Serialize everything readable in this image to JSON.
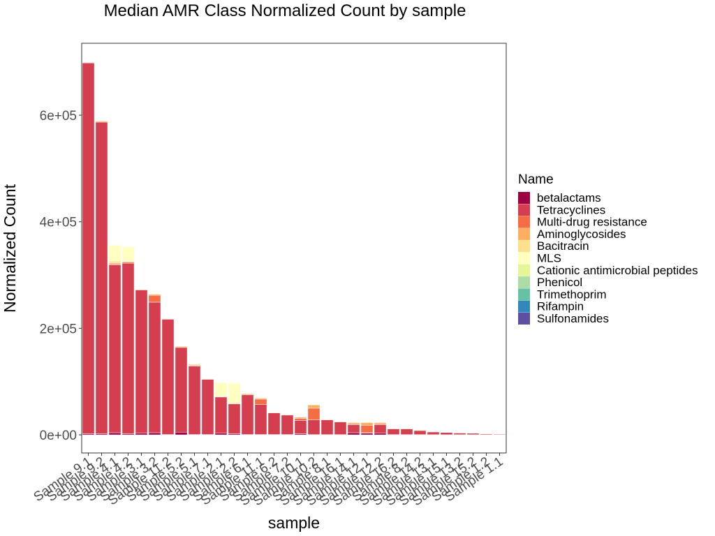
{
  "chart_data": {
    "type": "bar",
    "stacked": true,
    "title": "Median AMR Class Normalized Count by sample",
    "xlabel": "sample",
    "ylabel": "Normalized Count",
    "ylim": [
      -34000,
      735000
    ],
    "yticks": [
      0,
      200000,
      400000,
      600000
    ],
    "ytick_labels": [
      "0e+00",
      "2e+05",
      "4e+05",
      "6e+05"
    ],
    "grid": false,
    "legend": {
      "title": "Name",
      "position": "right"
    },
    "categories": [
      "Sample 9.1",
      "Sample 9.2",
      "Sample 4.1",
      "Sample 4.2",
      "Sample 3.1",
      "Sample 3.2",
      "Sample 11.2",
      "Sample 5.2",
      "Sample 5.1",
      "Sample 7.1",
      "Sample 2.1",
      "Sample 2.2",
      "Sample 6.1",
      "Sample 11.1",
      "Sample 6.2",
      "Sample 7.2",
      "Sample 10.1",
      "Sample 10.2",
      "Sample 8.1",
      "Sample 16.1",
      "Sample 14.1",
      "Sample 12.1",
      "Sample 12.2",
      "Sample 16.2",
      "Sample 8.2",
      "Sample 14.2",
      "Sample 13.1",
      "Sample 15.1",
      "Sample 13.2",
      "Sample 15.2",
      "Sample 1.2",
      "Sample 1.1"
    ],
    "series": [
      {
        "name": "betalactams",
        "color": "#9E0142",
        "values": [
          2000,
          2000,
          4000,
          2000,
          3000,
          4000,
          1000,
          5000,
          1000,
          1000,
          3000,
          2000,
          1000,
          1000,
          1000,
          1000,
          2000,
          500,
          500,
          500,
          4000,
          3000,
          3000,
          500,
          500,
          500,
          300,
          200,
          300,
          200,
          200,
          100
        ]
      },
      {
        "name": "Tetracyclines",
        "color": "#D53E4F",
        "values": [
          696000,
          585000,
          315000,
          320000,
          269000,
          245000,
          216000,
          159000,
          128000,
          103000,
          68000,
          56000,
          74000,
          56000,
          40000,
          36000,
          25000,
          27500,
          27500,
          23500,
          15000,
          1000,
          16000,
          10500,
          10500,
          7500,
          5200,
          4300,
          3200,
          2800,
          1800,
          1400
        ]
      },
      {
        "name": "Multi-drug resistance",
        "color": "#F46D43",
        "values": [
          0,
          0,
          2000,
          2000,
          0,
          13000,
          0,
          0,
          1000,
          0,
          0,
          0,
          0,
          10000,
          0,
          0,
          4000,
          22000,
          0,
          0,
          2000,
          14000,
          2000,
          0,
          0,
          0,
          0,
          0,
          0,
          0,
          0,
          0
        ]
      },
      {
        "name": "Aminoglycosides",
        "color": "#FDAE61",
        "values": [
          1000,
          2000,
          2000,
          1000,
          1000,
          2000,
          1000,
          2000,
          2000,
          1000,
          1000,
          1000,
          2000,
          2000,
          1000,
          1000,
          2000,
          6000,
          1000,
          1000,
          2000,
          5000,
          2000,
          1000,
          1000,
          1000,
          500,
          500,
          500,
          500,
          500,
          500
        ]
      },
      {
        "name": "Bacitracin",
        "color": "#FEE08B",
        "values": [
          0,
          0,
          3000,
          2000,
          0,
          0,
          0,
          0,
          0,
          0,
          1000,
          2000,
          0,
          0,
          0,
          0,
          0,
          0,
          0,
          0,
          0,
          0,
          0,
          0,
          0,
          0,
          0,
          0,
          0,
          0,
          0,
          0
        ]
      },
      {
        "name": "MLS",
        "color": "#FFFFBF",
        "values": [
          0,
          0,
          30000,
          26000,
          0,
          0,
          0,
          0,
          0,
          0,
          25000,
          36000,
          0,
          0,
          0,
          0,
          0,
          0,
          0,
          0,
          0,
          0,
          0,
          0,
          0,
          0,
          0,
          0,
          0,
          0,
          0,
          0
        ]
      },
      {
        "name": "Cationic antimicrobial peptides",
        "color": "#E6F598",
        "values": [
          0,
          0,
          0,
          0,
          0,
          0,
          0,
          0,
          0,
          0,
          0,
          0,
          0,
          0,
          0,
          0,
          0,
          0,
          0,
          0,
          0,
          0,
          0,
          0,
          0,
          0,
          0,
          0,
          0,
          0,
          0,
          0
        ]
      },
      {
        "name": "Phenicol",
        "color": "#ABDDA4",
        "values": [
          0,
          0,
          0,
          0,
          0,
          0,
          0,
          0,
          0,
          0,
          0,
          0,
          0,
          0,
          0,
          0,
          0,
          0,
          0,
          0,
          0,
          0,
          0,
          0,
          0,
          0,
          0,
          0,
          0,
          0,
          0,
          0
        ]
      },
      {
        "name": "Trimethoprim",
        "color": "#66C2A5",
        "values": [
          0,
          0,
          0,
          0,
          0,
          0,
          0,
          0,
          0,
          0,
          0,
          0,
          0,
          0,
          0,
          0,
          0,
          0,
          0,
          0,
          0,
          0,
          0,
          0,
          0,
          0,
          0,
          0,
          0,
          0,
          0,
          0
        ]
      },
      {
        "name": "Rifampin",
        "color": "#3288BD",
        "values": [
          0,
          0,
          0,
          0,
          0,
          0,
          0,
          0,
          0,
          0,
          0,
          0,
          0,
          0,
          0,
          0,
          0,
          0,
          0,
          0,
          0,
          0,
          0,
          0,
          0,
          0,
          0,
          0,
          0,
          0,
          0,
          0
        ]
      },
      {
        "name": "Sulfonamides",
        "color": "#5E4FA2",
        "values": [
          0,
          0,
          0,
          0,
          0,
          0,
          0,
          0,
          0,
          0,
          0,
          0,
          0,
          0,
          0,
          0,
          0,
          0,
          0,
          0,
          0,
          0,
          0,
          0,
          0,
          0,
          0,
          0,
          0,
          0,
          0,
          0
        ]
      }
    ]
  }
}
